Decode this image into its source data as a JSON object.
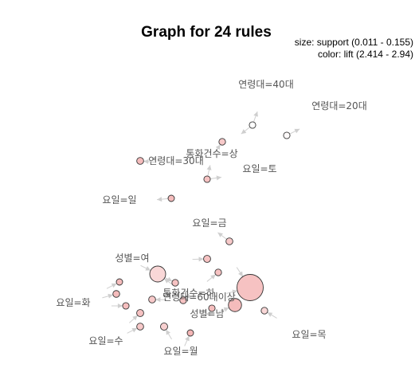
{
  "title": "Graph for 24 rules",
  "legend": {
    "size": "size: support (0.011 - 0.155)",
    "color": "color: lift (2.414 - 2.94)"
  },
  "colors": {
    "low_lift": "#ffffff",
    "high_lift": "#f4b6b6",
    "node_stroke": "#333333",
    "edge": "#cfcfcf",
    "label": "#555555"
  },
  "items": [
    {
      "id": "age40",
      "label": "연령대=40대"
    },
    {
      "id": "age20",
      "label": "연령대=20대"
    },
    {
      "id": "callsHigh",
      "label": "통화건수=상"
    },
    {
      "id": "age30",
      "label": "연령대=30대"
    },
    {
      "id": "sat",
      "label": "요일=토"
    },
    {
      "id": "sun",
      "label": "요일=일"
    },
    {
      "id": "fri",
      "label": "요일=금"
    },
    {
      "id": "female",
      "label": "성별=여"
    },
    {
      "id": "callsMid",
      "label": "통화건수=하"
    },
    {
      "id": "age60",
      "label": "연령대=60대이상"
    },
    {
      "id": "tue",
      "label": "요일=화"
    },
    {
      "id": "male",
      "label": "성별=남"
    },
    {
      "id": "thu",
      "label": "요일=목"
    },
    {
      "id": "wed",
      "label": "요일=수"
    },
    {
      "id": "mon",
      "label": "요일=월"
    }
  ],
  "rules": [
    {
      "support": 0.012,
      "lift": 2.414
    },
    {
      "support": 0.012,
      "lift": 2.45
    },
    {
      "support": 0.013,
      "lift": 2.8
    },
    {
      "support": 0.015,
      "lift": 2.9
    },
    {
      "support": 0.012,
      "lift": 2.85
    },
    {
      "support": 0.011,
      "lift": 2.9
    },
    {
      "support": 0.015,
      "lift": 2.8
    },
    {
      "support": 0.016,
      "lift": 2.85
    },
    {
      "support": 0.08,
      "lift": 2.7
    },
    {
      "support": 0.013,
      "lift": 2.85
    },
    {
      "support": 0.011,
      "lift": 2.9
    },
    {
      "support": 0.013,
      "lift": 2.85
    },
    {
      "support": 0.014,
      "lift": 2.9
    },
    {
      "support": 0.012,
      "lift": 2.88
    },
    {
      "support": 0.015,
      "lift": 2.8
    },
    {
      "support": 0.014,
      "lift": 2.85
    },
    {
      "support": 0.016,
      "lift": 2.85
    },
    {
      "support": 0.015,
      "lift": 2.8
    },
    {
      "support": 0.017,
      "lift": 2.75
    },
    {
      "support": 0.012,
      "lift": 2.88
    },
    {
      "support": 0.155,
      "lift": 2.85
    },
    {
      "support": 0.06,
      "lift": 2.9
    },
    {
      "support": 0.013,
      "lift": 2.7
    },
    {
      "support": 0.011,
      "lift": 2.94
    }
  ]
}
